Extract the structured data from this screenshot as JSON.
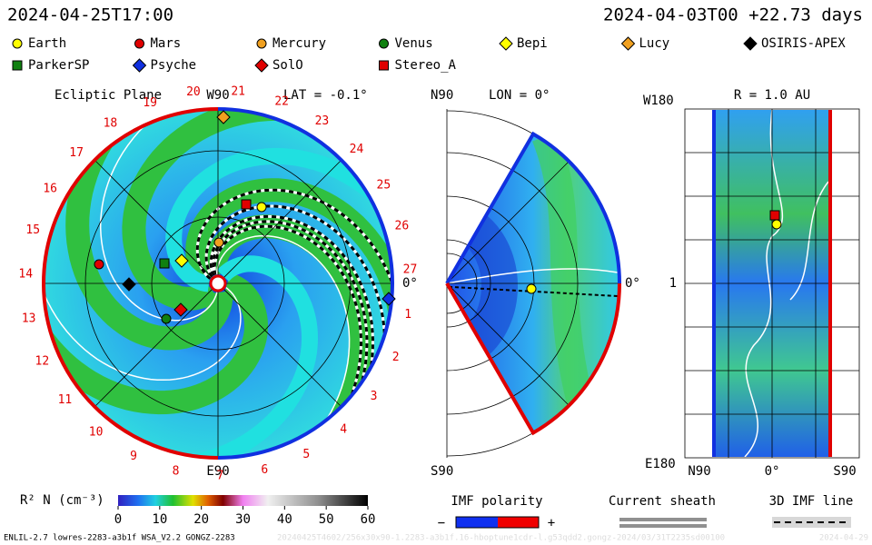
{
  "header": {
    "left": "2024-04-25T17:00",
    "right": "2024-04-03T00 +22.73 days"
  },
  "legend": [
    {
      "name": "Earth",
      "color": "#ffff00",
      "shape": "circle"
    },
    {
      "name": "Mars",
      "color": "#e00000",
      "shape": "circle"
    },
    {
      "name": "Mercury",
      "color": "#f0a020",
      "shape": "circle"
    },
    {
      "name": "Venus",
      "color": "#108010",
      "shape": "circle"
    },
    {
      "name": "Bepi",
      "color": "#ffff00",
      "shape": "diamond"
    },
    {
      "name": "Lucy",
      "color": "#f0a020",
      "shape": "diamond"
    },
    {
      "name": "OSIRIS-APEX",
      "color": "#000000",
      "shape": "diamond"
    },
    {
      "name": "ParkerSP",
      "color": "#108010",
      "shape": "square"
    },
    {
      "name": "Psyche",
      "color": "#1030e0",
      "shape": "diamond"
    },
    {
      "name": "SolO",
      "color": "#e00000",
      "shape": "diamond"
    },
    {
      "name": "Stereo_A",
      "color": "#e00000",
      "shape": "square"
    }
  ],
  "ecliptic": {
    "title": "Ecliptic Plane",
    "top": "W90",
    "lat": "LAT = -0.1°",
    "right": "0°",
    "bottom": "E90",
    "clock": [
      1,
      2,
      3,
      4,
      5,
      6,
      7,
      8,
      9,
      10,
      11,
      12,
      13,
      14,
      15,
      16,
      17,
      18,
      19,
      20,
      21,
      22,
      23,
      24,
      25,
      26,
      27
    ]
  },
  "meridional": {
    "top": "N90",
    "lon": "LON = 0°",
    "right": "0°",
    "bottom": "S90"
  },
  "sphere": {
    "top_left": "W180",
    "radius": "R = 1.0 AU",
    "mid": "1",
    "bottom_left": "E180",
    "x_left": "N90",
    "x_mid": "0°",
    "x_right": "S90"
  },
  "colorbar": {
    "title": "R² N (cm⁻³)",
    "lim": [
      0,
      60
    ],
    "ticks": [
      0,
      10,
      20,
      30,
      40,
      50,
      60
    ]
  },
  "imf": {
    "title": "IMF polarity",
    "minus": "−",
    "plus": "+"
  },
  "sheath": {
    "title": "Current sheath"
  },
  "imf_line": {
    "title": "3D IMF line"
  },
  "footer": {
    "left": "ENLIL-2.7 lowres-2283-a3b1f WSA_V2.2 GONGZ-2283",
    "middle": "20240425T4602/256x30x90-1.2283-a3b1f.16-hboptune1cdr-l.g53qdd2.gongz-2024/03/31T2235sd00100",
    "right": "2024-04-29"
  }
}
